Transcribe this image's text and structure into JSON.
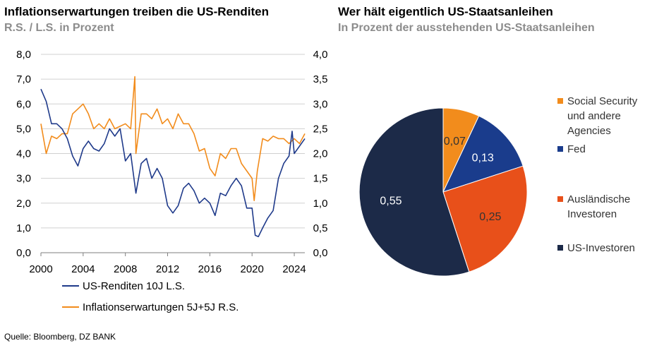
{
  "left_chart": {
    "title": "Inflationserwartungen treiben die US-Renditen",
    "subtitle": "R.S. / L.S. in Prozent"
  },
  "right_chart": {
    "title": "Wer hält eigentlich US-Staatsanleihen",
    "subtitle": "In Prozent der ausstehenden US-Staatsanleihen"
  },
  "source": "Quelle: Bloomberg, DZ BANK",
  "colors": {
    "navy": "#1f3a8a",
    "orange": "#f28c1c",
    "fed": "#1a3c8c",
    "foreign": "#e8501a",
    "domestic": "#1c2a48"
  },
  "chart_data": [
    {
      "type": "line",
      "x_ticks": [
        "2000",
        "2004",
        "2008",
        "2012",
        "2016",
        "2020",
        "2024"
      ],
      "y_left_ticks": [
        "0,0",
        "1,0",
        "2,0",
        "3,0",
        "4,0",
        "5,0",
        "6,0",
        "7,0",
        "8,0"
      ],
      "y_right_ticks": [
        "0,0",
        "0,5",
        "1,0",
        "1,5",
        "2,0",
        "2,5",
        "3,0",
        "3,5",
        "4,0"
      ],
      "ylim_left": [
        0,
        8
      ],
      "ylim_right": [
        0,
        4
      ],
      "xlim": [
        2000,
        2025
      ],
      "grid": true,
      "legend_position": "bottom",
      "series": [
        {
          "name": "US-Renditen 10J L.S.",
          "axis": "left",
          "color": "#1f3a8a",
          "x": [
            2000.0,
            2000.5,
            2001.0,
            2001.5,
            2002.0,
            2002.5,
            2003.0,
            2003.5,
            2004.0,
            2004.5,
            2005.0,
            2005.5,
            2006.0,
            2006.5,
            2007.0,
            2007.5,
            2008.0,
            2008.5,
            2009.0,
            2009.5,
            2010.0,
            2010.5,
            2011.0,
            2011.5,
            2012.0,
            2012.5,
            2013.0,
            2013.5,
            2014.0,
            2014.5,
            2015.0,
            2015.5,
            2016.0,
            2016.5,
            2017.0,
            2017.5,
            2018.0,
            2018.5,
            2019.0,
            2019.5,
            2020.0,
            2020.3,
            2020.6,
            2021.0,
            2021.5,
            2022.0,
            2022.5,
            2023.0,
            2023.5,
            2023.8,
            2024.0,
            2024.5,
            2025.0
          ],
          "values": [
            6.6,
            6.1,
            5.2,
            5.2,
            5.0,
            4.6,
            3.9,
            3.5,
            4.2,
            4.5,
            4.2,
            4.1,
            4.4,
            5.0,
            4.7,
            5.0,
            3.7,
            4.0,
            2.4,
            3.6,
            3.8,
            3.0,
            3.4,
            3.0,
            1.9,
            1.6,
            1.9,
            2.6,
            2.8,
            2.5,
            2.0,
            2.2,
            2.0,
            1.5,
            2.4,
            2.3,
            2.7,
            3.0,
            2.7,
            1.8,
            1.8,
            0.7,
            0.65,
            1.0,
            1.4,
            1.7,
            3.0,
            3.6,
            3.9,
            4.9,
            4.0,
            4.3,
            4.6
          ]
        },
        {
          "name": "Inflationserwartungen 5J+5J R.S.",
          "axis": "right",
          "color": "#f28c1c",
          "x": [
            2000.0,
            2000.5,
            2001.0,
            2001.5,
            2002.0,
            2002.5,
            2003.0,
            2003.5,
            2004.0,
            2004.5,
            2005.0,
            2005.5,
            2006.0,
            2006.5,
            2007.0,
            2007.5,
            2008.0,
            2008.5,
            2008.9,
            2009.0,
            2009.5,
            2010.0,
            2010.5,
            2011.0,
            2011.5,
            2012.0,
            2012.5,
            2013.0,
            2013.5,
            2014.0,
            2014.5,
            2015.0,
            2015.5,
            2016.0,
            2016.5,
            2017.0,
            2017.5,
            2018.0,
            2018.5,
            2019.0,
            2019.5,
            2020.0,
            2020.2,
            2020.5,
            2021.0,
            2021.5,
            2022.0,
            2022.5,
            2023.0,
            2023.5,
            2024.0,
            2024.5,
            2025.0
          ],
          "values": [
            2.6,
            2.0,
            2.35,
            2.3,
            2.4,
            2.4,
            2.8,
            2.9,
            3.0,
            2.8,
            2.5,
            2.6,
            2.5,
            2.7,
            2.5,
            2.55,
            2.6,
            2.5,
            3.55,
            2.0,
            2.8,
            2.8,
            2.7,
            2.9,
            2.6,
            2.7,
            2.5,
            2.8,
            2.6,
            2.6,
            2.4,
            2.05,
            2.1,
            1.7,
            1.55,
            2.0,
            1.9,
            2.1,
            2.1,
            1.8,
            1.65,
            1.5,
            1.05,
            1.65,
            2.3,
            2.25,
            2.35,
            2.3,
            2.3,
            2.2,
            2.3,
            2.2,
            2.4
          ]
        }
      ]
    },
    {
      "type": "pie",
      "slices": [
        {
          "label": "0,07",
          "value": 0.07,
          "legend": "Social Security und andere Agencies",
          "legend_lines": [
            "Social Security",
            "und andere",
            "Agencies"
          ],
          "color": "#f28c1c",
          "label_color": "#333333"
        },
        {
          "label": "0,13",
          "value": 0.13,
          "legend": "Fed",
          "legend_lines": [
            "Fed"
          ],
          "color": "#1a3c8c",
          "label_color": "#ffffff"
        },
        {
          "label": "0,25",
          "value": 0.25,
          "legend": "Ausländische Investoren",
          "legend_lines": [
            "Ausländische",
            "Investoren"
          ],
          "color": "#e8501a",
          "label_color": "#333333"
        },
        {
          "label": "0,55",
          "value": 0.55,
          "legend": "US-Investoren",
          "legend_lines": [
            "US-Investoren"
          ],
          "color": "#1c2a48",
          "label_color": "#ffffff"
        }
      ],
      "legend_position": "right"
    }
  ]
}
